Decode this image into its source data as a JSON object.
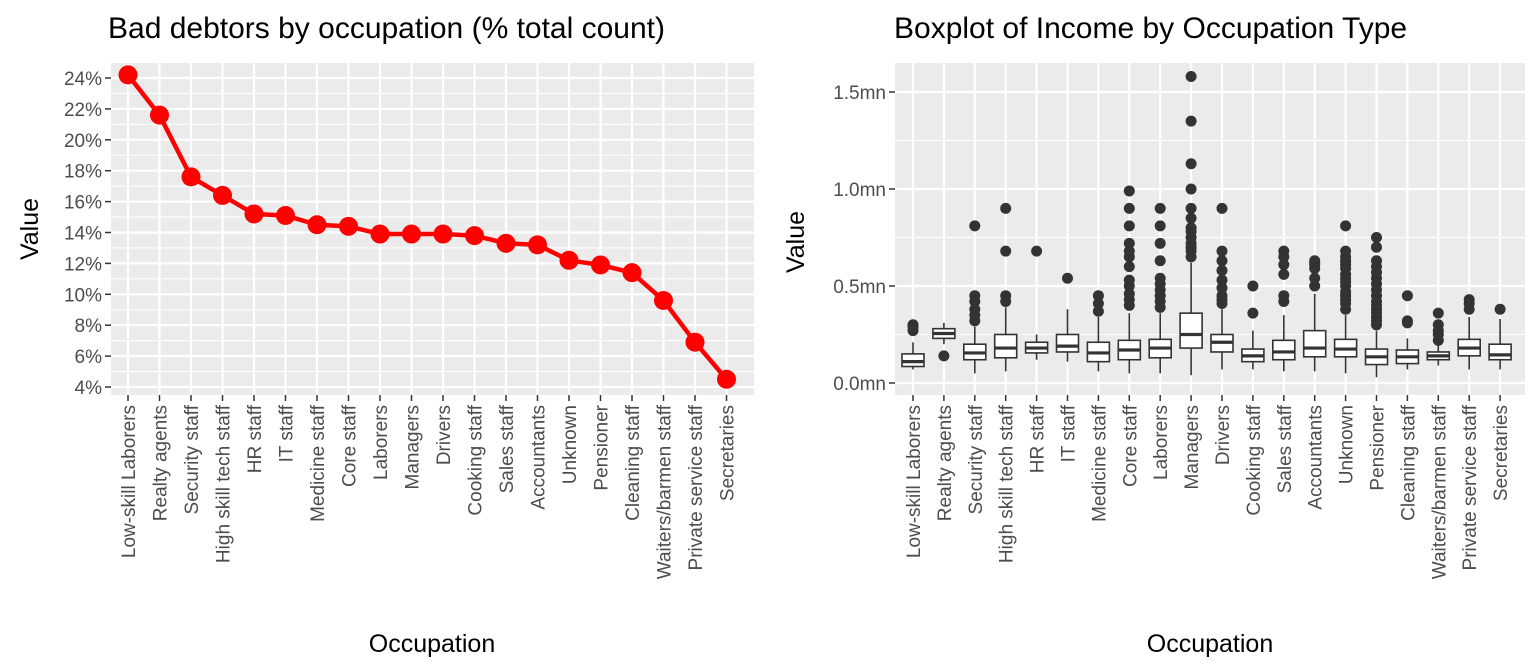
{
  "chart_data": [
    {
      "type": "line",
      "title": "Bad debtors by occupation (% total count)",
      "xlabel": "Occupation",
      "ylabel": "Value",
      "ylim": [
        4,
        24
      ],
      "y_ticks": [
        "4%",
        "6%",
        "8%",
        "10%",
        "12%",
        "14%",
        "16%",
        "18%",
        "20%",
        "22%",
        "24%"
      ],
      "grid": true,
      "categories": [
        "Low-skill Laborers",
        "Realty agents",
        "Security staff",
        "High skill tech staff",
        "HR staff",
        "IT staff",
        "Medicine staff",
        "Core staff",
        "Laborers",
        "Managers",
        "Drivers",
        "Cooking staff",
        "Sales staff",
        "Accountants",
        "Unknown",
        "Pensioner",
        "Cleaning staff",
        "Waiters/barmen staff",
        "Private service staff",
        "Secretaries"
      ],
      "series": [
        {
          "values": [
            24.2,
            21.6,
            17.6,
            16.4,
            15.2,
            15.1,
            14.5,
            14.4,
            13.9,
            13.9,
            13.9,
            13.8,
            13.3,
            13.2,
            12.2,
            11.9,
            11.4,
            9.6,
            6.9,
            4.5
          ],
          "color": "#ff0000"
        }
      ]
    },
    {
      "type": "box",
      "title": "Boxplot of Income by Occupation Type",
      "xlabel": "Occupation",
      "ylabel": "Value",
      "ylim": [
        0,
        1.6
      ],
      "y_ticks": [
        "0.0mn",
        "0.5mn",
        "1.0mn",
        "1.5mn"
      ],
      "y_tick_values": [
        0,
        0.5,
        1.0,
        1.5
      ],
      "grid": true,
      "categories": [
        "Low-skill Laborers",
        "Realty agents",
        "Security staff",
        "High skill tech staff",
        "HR staff",
        "IT staff",
        "Medicine staff",
        "Core staff",
        "Laborers",
        "Managers",
        "Drivers",
        "Cooking staff",
        "Sales staff",
        "Accountants",
        "Unknown",
        "Pensioner",
        "Cleaning staff",
        "Waiters/barmen staff",
        "Private service staff",
        "Secretaries"
      ],
      "boxes": [
        {
          "low": 0.07,
          "q1": 0.085,
          "median": 0.11,
          "q3": 0.15,
          "high": 0.21,
          "outliers": [
            0.27,
            0.29,
            0.3
          ]
        },
        {
          "low": 0.2,
          "q1": 0.23,
          "median": 0.255,
          "q3": 0.28,
          "high": 0.31,
          "outliers": [
            0.14
          ]
        },
        {
          "low": 0.05,
          "q1": 0.12,
          "median": 0.155,
          "q3": 0.2,
          "high": 0.29,
          "outliers": [
            0.32,
            0.35,
            0.38,
            0.42,
            0.45,
            0.81
          ]
        },
        {
          "low": 0.06,
          "q1": 0.13,
          "median": 0.18,
          "q3": 0.25,
          "high": 0.39,
          "outliers": [
            0.42,
            0.45,
            0.68,
            0.9
          ]
        },
        {
          "low": 0.12,
          "q1": 0.155,
          "median": 0.18,
          "q3": 0.21,
          "high": 0.25,
          "outliers": [
            0.68
          ]
        },
        {
          "low": 0.11,
          "q1": 0.16,
          "median": 0.19,
          "q3": 0.25,
          "high": 0.38,
          "outliers": [
            0.54
          ]
        },
        {
          "low": 0.06,
          "q1": 0.11,
          "median": 0.155,
          "q3": 0.21,
          "high": 0.34,
          "outliers": [
            0.37,
            0.41,
            0.45
          ]
        },
        {
          "low": 0.05,
          "q1": 0.12,
          "median": 0.17,
          "q3": 0.22,
          "high": 0.36,
          "outliers": [
            0.4,
            0.43,
            0.46,
            0.5,
            0.53,
            0.6,
            0.65,
            0.68,
            0.72,
            0.81,
            0.9,
            0.99
          ]
        },
        {
          "low": 0.05,
          "q1": 0.13,
          "median": 0.18,
          "q3": 0.225,
          "high": 0.36,
          "outliers": [
            0.39,
            0.42,
            0.45,
            0.48,
            0.51,
            0.54,
            0.63,
            0.72,
            0.81,
            0.9
          ]
        },
        {
          "low": 0.04,
          "q1": 0.18,
          "median": 0.25,
          "q3": 0.36,
          "high": 0.62,
          "outliers": [
            0.65,
            0.68,
            0.7,
            0.72,
            0.75,
            0.78,
            0.8,
            0.85,
            0.9,
            1.0,
            1.13,
            1.35,
            1.58
          ]
        },
        {
          "low": 0.07,
          "q1": 0.16,
          "median": 0.21,
          "q3": 0.25,
          "high": 0.38,
          "outliers": [
            0.41,
            0.43,
            0.45,
            0.49,
            0.53,
            0.58,
            0.63,
            0.68,
            0.9
          ]
        },
        {
          "low": 0.07,
          "q1": 0.11,
          "median": 0.14,
          "q3": 0.175,
          "high": 0.27,
          "outliers": [
            0.36,
            0.5
          ]
        },
        {
          "low": 0.06,
          "q1": 0.12,
          "median": 0.16,
          "q3": 0.22,
          "high": 0.35,
          "outliers": [
            0.42,
            0.45,
            0.56,
            0.61,
            0.65,
            0.68
          ]
        },
        {
          "low": 0.06,
          "q1": 0.135,
          "median": 0.18,
          "q3": 0.27,
          "high": 0.46,
          "outliers": [
            0.5,
            0.54,
            0.59,
            0.61,
            0.62,
            0.63
          ]
        },
        {
          "low": 0.05,
          "q1": 0.135,
          "median": 0.175,
          "q3": 0.225,
          "high": 0.35,
          "outliers": [
            0.38,
            0.41,
            0.43,
            0.45,
            0.47,
            0.5,
            0.52,
            0.54,
            0.56,
            0.59,
            0.61,
            0.63,
            0.65,
            0.68,
            0.81
          ]
        },
        {
          "low": 0.03,
          "q1": 0.095,
          "median": 0.135,
          "q3": 0.175,
          "high": 0.27,
          "outliers": [
            0.3,
            0.32,
            0.34,
            0.36,
            0.38,
            0.4,
            0.42,
            0.45,
            0.48,
            0.51,
            0.54,
            0.57,
            0.6,
            0.63,
            0.7,
            0.75
          ]
        },
        {
          "low": 0.07,
          "q1": 0.1,
          "median": 0.135,
          "q3": 0.17,
          "high": 0.23,
          "outliers": [
            0.31,
            0.32,
            0.45
          ]
        },
        {
          "low": 0.09,
          "q1": 0.12,
          "median": 0.14,
          "q3": 0.16,
          "high": 0.2,
          "outliers": [
            0.22,
            0.25,
            0.27,
            0.3,
            0.36
          ]
        },
        {
          "low": 0.07,
          "q1": 0.14,
          "median": 0.18,
          "q3": 0.225,
          "high": 0.34,
          "outliers": [
            0.38,
            0.41,
            0.43
          ]
        },
        {
          "low": 0.07,
          "q1": 0.12,
          "median": 0.145,
          "q3": 0.2,
          "high": 0.33,
          "outliers": [
            0.38
          ]
        }
      ]
    }
  ]
}
